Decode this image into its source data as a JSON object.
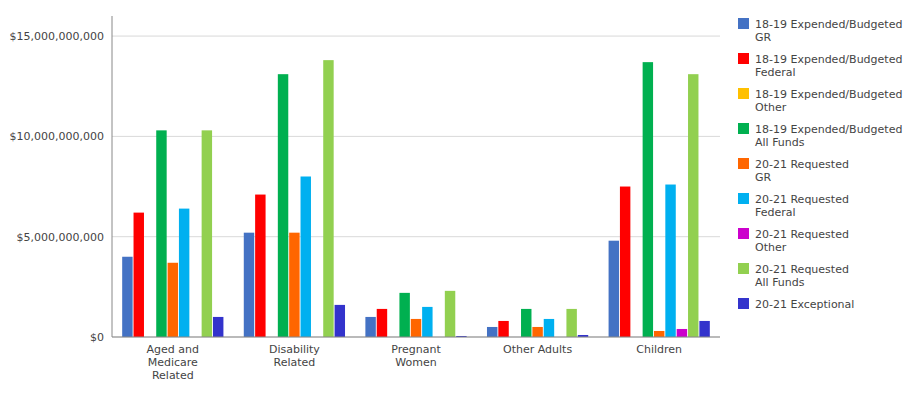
{
  "chart_data": {
    "type": "bar",
    "categories": [
      "Aged and\nMedicare\nRelated",
      "Disability\nRelated",
      "Pregnant\nWomen",
      "Other Adults",
      "Children"
    ],
    "series": [
      {
        "name": "18-19 Expended/Budgeted\nGR",
        "color": "#4472C4",
        "values": [
          4000000000,
          5200000000,
          1000000000,
          500000000,
          4800000000
        ]
      },
      {
        "name": "18-19 Expended/Budgeted\nFederal",
        "color": "#FF0000",
        "values": [
          6200000000,
          7100000000,
          1400000000,
          800000000,
          7500000000
        ]
      },
      {
        "name": "18-19 Expended/Budgeted\nOther",
        "color": "#FFC000",
        "values": [
          0,
          0,
          0,
          0,
          0
        ]
      },
      {
        "name": "18-19 Expended/Budgeted\nAll Funds",
        "color": "#00B050",
        "values": [
          10300000000,
          13100000000,
          2200000000,
          1400000000,
          13700000000
        ]
      },
      {
        "name": "20-21 Requested\nGR",
        "color": "#FF6600",
        "values": [
          3700000000,
          5200000000,
          900000000,
          500000000,
          300000000
        ]
      },
      {
        "name": "20-21 Requested\nFederal",
        "color": "#00B0F0",
        "values": [
          6400000000,
          8000000000,
          1500000000,
          900000000,
          7600000000
        ]
      },
      {
        "name": "20-21 Requested\nOther",
        "color": "#CC00CC",
        "values": [
          0,
          0,
          0,
          0,
          400000000
        ]
      },
      {
        "name": "20-21 Requested\nAll Funds",
        "color": "#92D050",
        "values": [
          10300000000,
          13800000000,
          2300000000,
          1400000000,
          13100000000
        ]
      },
      {
        "name": "20-21 Exceptional",
        "color": "#3333CC",
        "values": [
          1000000000,
          1600000000,
          50000000,
          100000000,
          800000000
        ]
      }
    ],
    "ylim": [
      0,
      16000000000
    ],
    "yticks": [
      {
        "value": 0,
        "label": "$0"
      },
      {
        "value": 5000000000,
        "label": "$5,000,000,000"
      },
      {
        "value": 10000000000,
        "label": "$10,000,000,000"
      },
      {
        "value": 15000000000,
        "label": "$15,000,000,000"
      }
    ],
    "grid": true,
    "legend": "right"
  }
}
